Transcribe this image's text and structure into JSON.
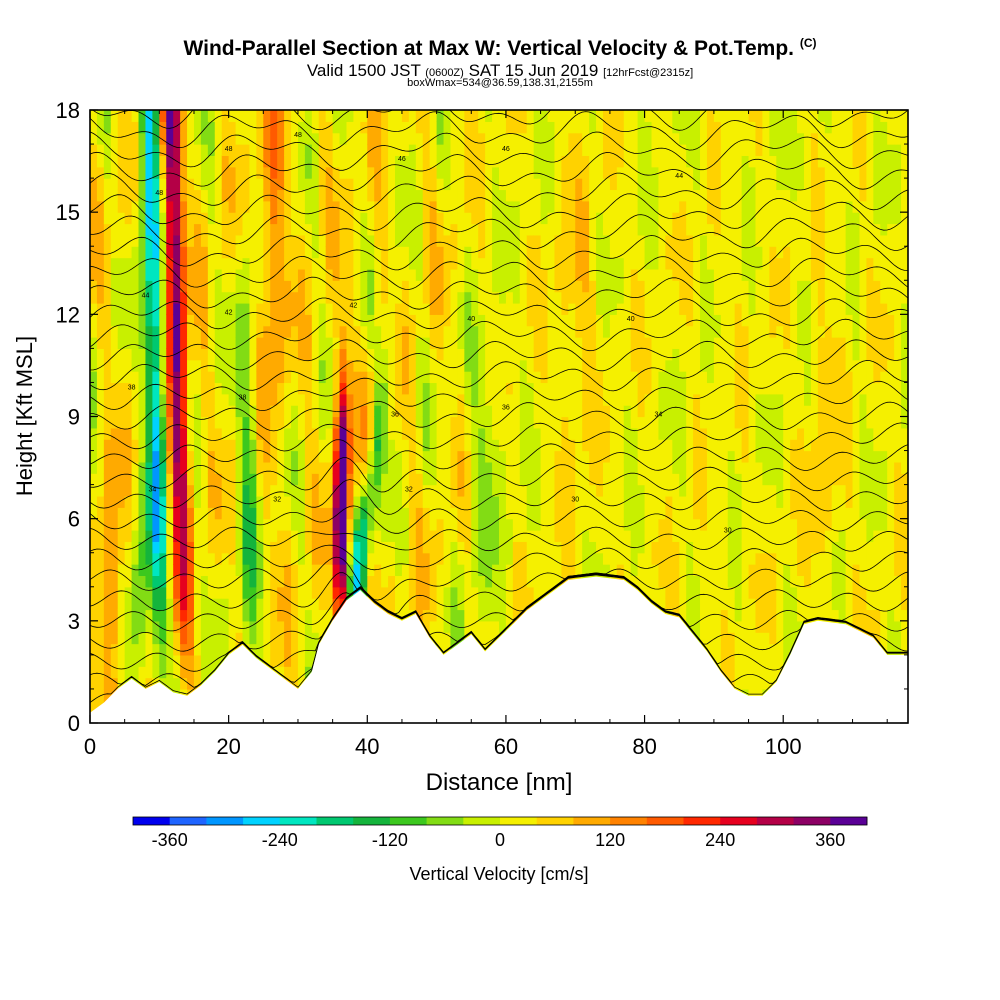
{
  "header": {
    "title": "Wind-Parallel Section at Max W: Vertical Velocity & Pot.Temp.",
    "copyright": "(C)",
    "valid_prefix": "Valid 1500 JST",
    "zulu": "(0600Z)",
    "valid_date": "SAT 15 Jun 2019",
    "forecast": "[12hrFcst@2315z]",
    "box_info": "boxWmax=534@36.59,138.31,2155m"
  },
  "chart_data": {
    "type": "heatmap",
    "xlabel": "Distance [nm]",
    "ylabel": "Height [Kft MSL]",
    "xlim": [
      0,
      118
    ],
    "ylim": [
      0,
      18
    ],
    "x_ticks": [
      "0",
      "20",
      "40",
      "60",
      "80",
      "100"
    ],
    "y_ticks": [
      "0",
      "3",
      "6",
      "9",
      "12",
      "15",
      "18"
    ],
    "colorbar": {
      "label": "Vertical Velocity [cm/s]",
      "tick_labels": [
        "-360",
        "-240",
        "-120",
        "0",
        "120",
        "240",
        "360"
      ],
      "tick_values": [
        -360,
        -240,
        -120,
        0,
        120,
        240,
        360
      ],
      "range": [
        -400,
        400
      ],
      "colors": [
        "#0000ee",
        "#1e64ff",
        "#0096ff",
        "#00d2ff",
        "#00e6c0",
        "#00c870",
        "#14b43c",
        "#3cc81e",
        "#82dc14",
        "#c8f000",
        "#f5f000",
        "#ffd200",
        "#ffaa00",
        "#ff8200",
        "#ff5a00",
        "#ff2800",
        "#e6001e",
        "#b40046",
        "#8c0064",
        "#5a0096"
      ]
    },
    "terrain": [
      [
        0,
        0.3
      ],
      [
        2,
        0.6
      ],
      [
        4,
        1.0
      ],
      [
        6,
        1.3
      ],
      [
        8,
        1.0
      ],
      [
        10,
        1.2
      ],
      [
        12,
        0.9
      ],
      [
        14,
        0.8
      ],
      [
        16,
        1.1
      ],
      [
        18,
        1.5
      ],
      [
        20,
        2.0
      ],
      [
        22,
        2.3
      ],
      [
        24,
        1.9
      ],
      [
        26,
        1.6
      ],
      [
        28,
        1.3
      ],
      [
        30,
        1.0
      ],
      [
        32,
        1.5
      ],
      [
        33,
        2.3
      ],
      [
        35,
        3.0
      ],
      [
        37,
        3.6
      ],
      [
        39,
        3.9
      ],
      [
        41,
        3.5
      ],
      [
        43,
        3.2
      ],
      [
        45,
        3.0
      ],
      [
        47,
        3.2
      ],
      [
        49,
        2.5
      ],
      [
        51,
        2.0
      ],
      [
        53,
        2.3
      ],
      [
        55,
        2.6
      ],
      [
        57,
        2.1
      ],
      [
        59,
        2.5
      ],
      [
        61,
        2.9
      ],
      [
        63,
        3.3
      ],
      [
        65,
        3.6
      ],
      [
        67,
        3.9
      ],
      [
        69,
        4.2
      ],
      [
        73,
        4.3
      ],
      [
        77,
        4.2
      ],
      [
        79,
        3.9
      ],
      [
        81,
        3.5
      ],
      [
        83,
        3.2
      ],
      [
        85,
        3.1
      ],
      [
        87,
        2.6
      ],
      [
        89,
        2.1
      ],
      [
        91,
        1.5
      ],
      [
        93,
        1.0
      ],
      [
        95,
        0.8
      ],
      [
        97,
        0.8
      ],
      [
        99,
        1.2
      ],
      [
        101,
        2.0
      ],
      [
        103,
        2.9
      ],
      [
        105,
        3.0
      ],
      [
        109,
        2.9
      ],
      [
        111,
        2.7
      ],
      [
        113,
        2.5
      ],
      [
        115,
        2.0
      ],
      [
        118,
        2.0
      ]
    ],
    "vertical_velocity_features": [
      {
        "x_range": [
          9.5,
          12
        ],
        "sign": "downdraft",
        "peak": -300
      },
      {
        "x_range": [
          12,
          16
        ],
        "sign": "updraft",
        "peak": 300
      },
      {
        "x_range": [
          35,
          37.5
        ],
        "sign": "updraft",
        "peak": 534
      },
      {
        "x_range": [
          37.5,
          47
        ],
        "sign": "downdraft",
        "peak": -300
      }
    ],
    "contour_labels": [
      "48",
      "48",
      "48",
      "46",
      "46",
      "44",
      "44",
      "42",
      "42",
      "40",
      "40",
      "38",
      "38",
      "36",
      "36",
      "34",
      "34",
      "32",
      "32",
      "30",
      "30"
    ]
  }
}
